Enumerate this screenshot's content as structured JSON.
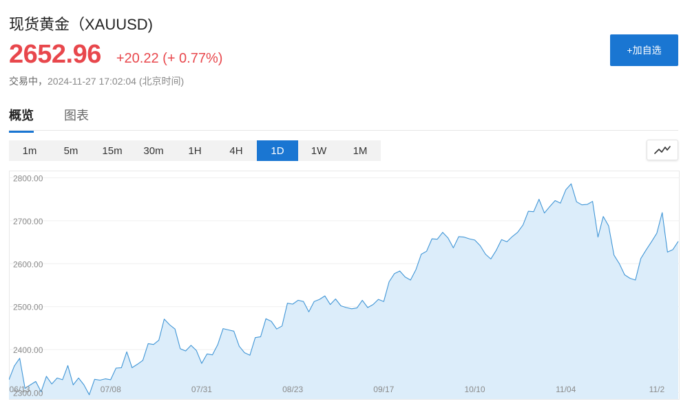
{
  "header": {
    "title": "现货黄金（XAUUSD)",
    "price": "2652.96",
    "change": "+20.22 (+ 0.77%)",
    "status_label": "交易中，",
    "timestamp": "2024-11-27 17:02:04 (北京时间)",
    "watchlist_button": "+加自选"
  },
  "tabs": [
    {
      "label": "概览",
      "active": true
    },
    {
      "label": "图表",
      "active": false
    }
  ],
  "periods": [
    {
      "label": "1m",
      "active": false
    },
    {
      "label": "5m",
      "active": false
    },
    {
      "label": "15m",
      "active": false
    },
    {
      "label": "30m",
      "active": false
    },
    {
      "label": "1H",
      "active": false
    },
    {
      "label": "4H",
      "active": false
    },
    {
      "label": "1D",
      "active": true
    },
    {
      "label": "1W",
      "active": false
    },
    {
      "label": "1M",
      "active": false
    }
  ],
  "chart_toggle_icon": "line-chart-icon",
  "colors": {
    "up": "#e8474c",
    "accent": "#1a76d2",
    "line": "#3f95d6",
    "fill": "#dcedfa"
  },
  "chart_data": {
    "type": "area",
    "y_ticks": [
      "2800.00",
      "2700.00",
      "2600.00",
      "2500.00",
      "2400.00",
      "2300.00"
    ],
    "y_tick_values": [
      2800,
      2700,
      2600,
      2500,
      2400,
      2300
    ],
    "x_ticks": [
      {
        "label": "06/13",
        "index": 2
      },
      {
        "label": "07/08",
        "index": 19
      },
      {
        "label": "07/31",
        "index": 36
      },
      {
        "label": "08/23",
        "index": 53
      },
      {
        "label": "09/17",
        "index": 70
      },
      {
        "label": "10/10",
        "index": 87
      },
      {
        "label": "11/04",
        "index": 104
      },
      {
        "label": "11/2",
        "index": 121
      }
    ],
    "ylim": [
      2285,
      2815
    ],
    "grid": true,
    "values": [
      2330,
      2362,
      2380,
      2310,
      2318,
      2326,
      2302,
      2338,
      2320,
      2334,
      2330,
      2363,
      2318,
      2334,
      2318,
      2295,
      2331,
      2329,
      2332,
      2330,
      2357,
      2358,
      2395,
      2358,
      2366,
      2375,
      2414,
      2412,
      2422,
      2471,
      2458,
      2448,
      2402,
      2397,
      2410,
      2398,
      2368,
      2390,
      2388,
      2412,
      2449,
      2446,
      2443,
      2408,
      2393,
      2387,
      2428,
      2430,
      2472,
      2466,
      2448,
      2455,
      2508,
      2506,
      2515,
      2512,
      2488,
      2512,
      2517,
      2525,
      2505,
      2518,
      2502,
      2498,
      2495,
      2497,
      2515,
      2498,
      2505,
      2517,
      2512,
      2558,
      2577,
      2583,
      2569,
      2562,
      2586,
      2622,
      2629,
      2658,
      2657,
      2673,
      2660,
      2637,
      2663,
      2662,
      2658,
      2655,
      2642,
      2622,
      2611,
      2631,
      2656,
      2651,
      2663,
      2673,
      2690,
      2722,
      2721,
      2750,
      2718,
      2733,
      2747,
      2741,
      2772,
      2786,
      2744,
      2737,
      2738,
      2745,
      2662,
      2710,
      2688,
      2620,
      2600,
      2574,
      2566,
      2562,
      2612,
      2632,
      2651,
      2671,
      2719,
      2627,
      2633,
      2652
    ]
  }
}
